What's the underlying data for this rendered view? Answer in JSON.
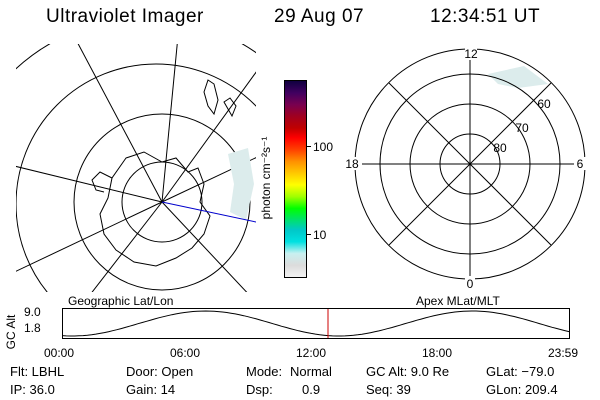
{
  "header": {
    "title": "Ultraviolet Imager",
    "date": "29 Aug 07",
    "time": "12:34:51 UT"
  },
  "colorbar": {
    "unit": "photon cm⁻²s⁻¹",
    "ticks": [
      "100",
      "10"
    ],
    "scale": "log",
    "colors": [
      "#f2f2f2",
      "#dcdcdc",
      "#c8f0f0",
      "#00e0e0",
      "#00c8c8",
      "#00e070",
      "#00ff00",
      "#a0ff00",
      "#ffff00",
      "#ffc800",
      "#ff9000",
      "#ff4000",
      "#ff0000",
      "#c00000",
      "#a00020",
      "#780050",
      "#400060",
      "#100040"
    ]
  },
  "geo_map": {
    "label": "Geographic Lat/Lon"
  },
  "mlt_dial": {
    "label": "Apex MLat/MLT",
    "hour_labels": {
      "top": "12",
      "bottom": "0",
      "left": "18",
      "right": "6"
    },
    "lat_labels": [
      "60",
      "70",
      "80"
    ]
  },
  "altitude_plot": {
    "ylabel": "GC Alt",
    "y_ticks": [
      "9.0",
      "1.8"
    ],
    "x_ticks": [
      "00:00",
      "06:00",
      "12:00",
      "18:00",
      "23:59"
    ],
    "marker_time": "12:34:51",
    "marker_color": "#cc0000"
  },
  "info": {
    "filter": "Flt: LBHL",
    "door": "Door: Open",
    "mode_label": "Mode:",
    "mode_value": "Normal",
    "gc_alt": "GC Alt: 9.0 Re",
    "glat": "GLat: −79.0",
    "ip": "IP: 36.0",
    "gain": "Gain: 14",
    "dsp_label": "Dsp:",
    "dsp_value": "0.9",
    "seq": "Seq: 39",
    "glon": "GLon: 209.4"
  }
}
